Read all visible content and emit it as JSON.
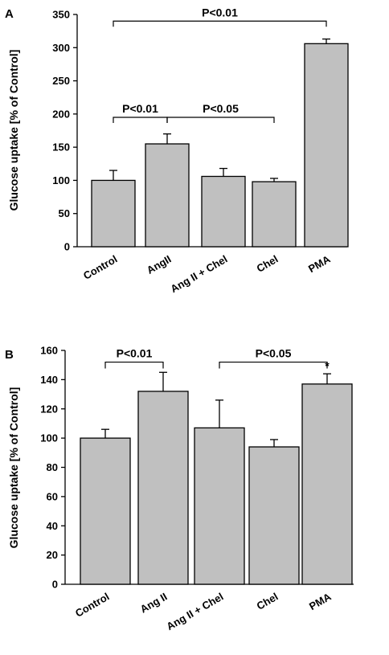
{
  "chart_data": [
    {
      "type": "bar",
      "panel_label": "A",
      "ylabel": "Glucose uptake [% of Control]",
      "ylim": [
        0,
        350
      ],
      "yticks": [
        0,
        50,
        100,
        150,
        200,
        250,
        300,
        350
      ],
      "categories": [
        "Control",
        "AngII",
        "Ang II + Chel",
        "Chel",
        "PMA"
      ],
      "values": [
        100,
        155,
        106,
        98,
        306
      ],
      "errors": [
        15,
        15,
        12,
        5,
        7
      ],
      "annotations": [
        {
          "text": "P<0.01",
          "from": 0,
          "to": 4,
          "level": 340
        },
        {
          "text": "P<0.01",
          "from": 0,
          "to": 1,
          "level": 195
        },
        {
          "text": "P<0.05",
          "from": 1,
          "to": 3,
          "level": 195
        }
      ]
    },
    {
      "type": "bar",
      "panel_label": "B",
      "ylabel": "Glucose uptake [% of Control]",
      "ylim": [
        0,
        160
      ],
      "yticks": [
        0,
        20,
        40,
        60,
        80,
        100,
        120,
        140,
        160
      ],
      "categories": [
        "Control",
        "Ang II",
        "Ang II + Chel",
        "Chel",
        "PMA"
      ],
      "values": [
        100,
        132,
        107,
        94,
        137
      ],
      "errors": [
        6,
        13,
        19,
        5,
        7
      ],
      "annotations": [
        {
          "text": "P<0.01",
          "from": 0,
          "to": 1,
          "level": 152
        },
        {
          "text": "P<0.05",
          "from": 2,
          "to": 4,
          "level": 152
        }
      ],
      "star": {
        "index": 4,
        "text": "*"
      }
    }
  ]
}
